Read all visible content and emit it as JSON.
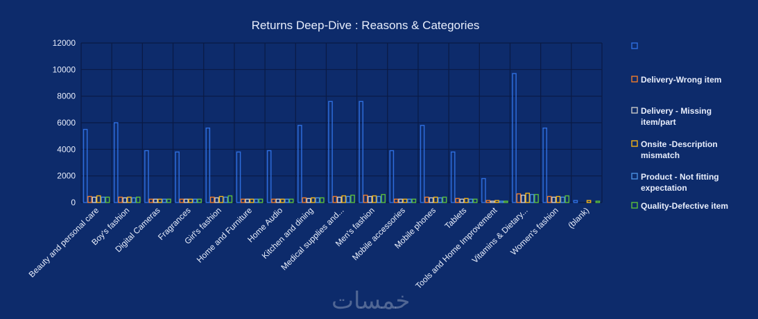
{
  "watermark": "خمسات",
  "chart_data": {
    "type": "bar",
    "title": "Returns Deep-Dive : Reasons & Categories",
    "xlabel": "",
    "ylabel": "",
    "ylim": [
      0,
      12000
    ],
    "yticks": [
      0,
      2000,
      4000,
      6000,
      8000,
      10000,
      12000
    ],
    "grid": true,
    "legend_position": "right",
    "categories": [
      "Beauty and personal care",
      "Boy's fashion",
      "Digital Cameras",
      "Fragrances",
      "Girl's fashion",
      "Home and Furniture",
      "Home Audio",
      "Kitchen and dining",
      "Medical supplies and...",
      "Men's fashion",
      "Mobile accessories",
      "Mobile phones",
      "Tablets",
      "Tools and Home Improvement",
      "Vitamins & Dietary...",
      "Women's fashion",
      "(blank)"
    ],
    "series": [
      {
        "name": "",
        "color": "#2f6fe0",
        "values": [
          5500,
          6000,
          3900,
          3800,
          5600,
          3800,
          3900,
          5800,
          7600,
          7600,
          3900,
          5800,
          3800,
          1800,
          9700,
          5600,
          150
        ]
      },
      {
        "name": "Delivery-Wrong item",
        "color": "#f07c2a",
        "values": [
          450,
          400,
          250,
          250,
          400,
          250,
          250,
          350,
          450,
          550,
          250,
          400,
          300,
          150,
          650,
          450,
          0
        ]
      },
      {
        "name": "Delivery - Missing item/part",
        "color": "#c9c9c9",
        "values": [
          400,
          350,
          250,
          250,
          350,
          250,
          250,
          300,
          400,
          450,
          250,
          350,
          250,
          100,
          550,
          400,
          0
        ]
      },
      {
        "name": "Onsite -Description mismatch",
        "color": "#f5b416",
        "values": [
          500,
          400,
          250,
          250,
          450,
          250,
          250,
          350,
          500,
          500,
          250,
          400,
          300,
          150,
          700,
          450,
          150
        ]
      },
      {
        "name": "Product - Not fitting expectation",
        "color": "#4a90e2",
        "values": [
          400,
          350,
          250,
          250,
          400,
          250,
          250,
          350,
          450,
          450,
          250,
          350,
          250,
          100,
          600,
          400,
          0
        ]
      },
      {
        "name": "Quality-Defective item",
        "color": "#5cbf3a",
        "values": [
          400,
          400,
          250,
          250,
          500,
          250,
          250,
          350,
          550,
          600,
          250,
          400,
          250,
          100,
          600,
          500,
          100
        ]
      }
    ]
  }
}
